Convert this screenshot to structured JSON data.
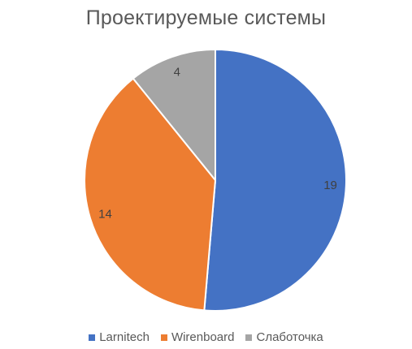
{
  "chart_data": {
    "type": "pie",
    "title": "Проектируемые системы",
    "categories": [
      "Larnitech",
      "Wirenboard",
      "Слаботочка"
    ],
    "values": [
      19,
      14,
      4
    ],
    "colors": [
      "#4472C4",
      "#ED7D31",
      "#A5A5A5"
    ],
    "data_labels": [
      "19",
      "14",
      "4"
    ],
    "legend_position": "bottom",
    "start_angle": "12 o'clock, clockwise"
  }
}
